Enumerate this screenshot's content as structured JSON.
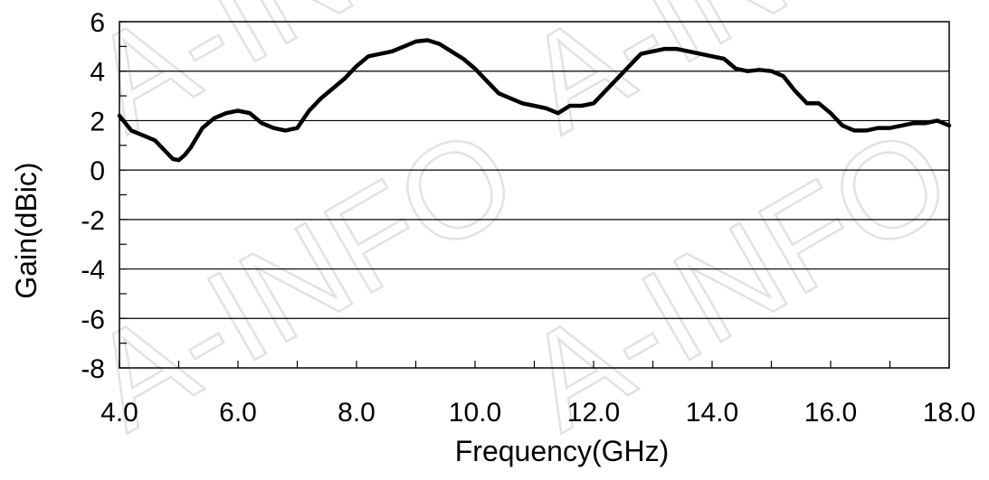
{
  "watermark": "A-INFO",
  "chart_data": {
    "type": "line",
    "title": "",
    "xlabel": "Frequency(GHz)",
    "ylabel": "Gain(dBic)",
    "xlim": [
      4.0,
      18.0
    ],
    "ylim": [
      -8,
      6
    ],
    "grid": true,
    "x_ticks": [
      "4.0",
      "6.0",
      "8.0",
      "10.0",
      "12.0",
      "14.0",
      "16.0",
      "18.0"
    ],
    "y_ticks": [
      "6",
      "4",
      "2",
      "0",
      "-2",
      "-4",
      "-6",
      "-8"
    ],
    "series": [
      {
        "color": "#000000",
        "x": [
          4.0,
          4.2,
          4.4,
          4.6,
          4.8,
          4.9,
          5.0,
          5.1,
          5.2,
          5.4,
          5.6,
          5.8,
          6.0,
          6.2,
          6.4,
          6.6,
          6.8,
          7.0,
          7.2,
          7.4,
          7.6,
          7.8,
          8.0,
          8.2,
          8.4,
          8.6,
          8.8,
          9.0,
          9.2,
          9.4,
          9.6,
          9.8,
          10.0,
          10.2,
          10.4,
          10.6,
          10.8,
          11.0,
          11.2,
          11.4,
          11.6,
          11.8,
          12.0,
          12.2,
          12.4,
          12.6,
          12.8,
          13.0,
          13.2,
          13.4,
          13.6,
          13.8,
          14.0,
          14.2,
          14.4,
          14.6,
          14.8,
          15.0,
          15.2,
          15.4,
          15.6,
          15.8,
          16.0,
          16.2,
          16.4,
          16.6,
          16.8,
          17.0,
          17.2,
          17.4,
          17.6,
          17.8,
          18.0
        ],
        "y": [
          2.2,
          1.6,
          1.4,
          1.2,
          0.7,
          0.45,
          0.4,
          0.6,
          0.9,
          1.7,
          2.1,
          2.3,
          2.4,
          2.3,
          1.9,
          1.7,
          1.6,
          1.7,
          2.4,
          2.9,
          3.3,
          3.7,
          4.2,
          4.6,
          4.7,
          4.8,
          5.0,
          5.2,
          5.25,
          5.1,
          4.8,
          4.5,
          4.1,
          3.6,
          3.1,
          2.9,
          2.7,
          2.6,
          2.5,
          2.3,
          2.6,
          2.6,
          2.7,
          3.2,
          3.7,
          4.2,
          4.7,
          4.8,
          4.9,
          4.9,
          4.8,
          4.7,
          4.6,
          4.5,
          4.1,
          4.0,
          4.05,
          4.0,
          3.8,
          3.2,
          2.7,
          2.7,
          2.3,
          1.8,
          1.6,
          1.6,
          1.7,
          1.7,
          1.8,
          1.9,
          1.9,
          2.0,
          1.8
        ]
      }
    ]
  }
}
